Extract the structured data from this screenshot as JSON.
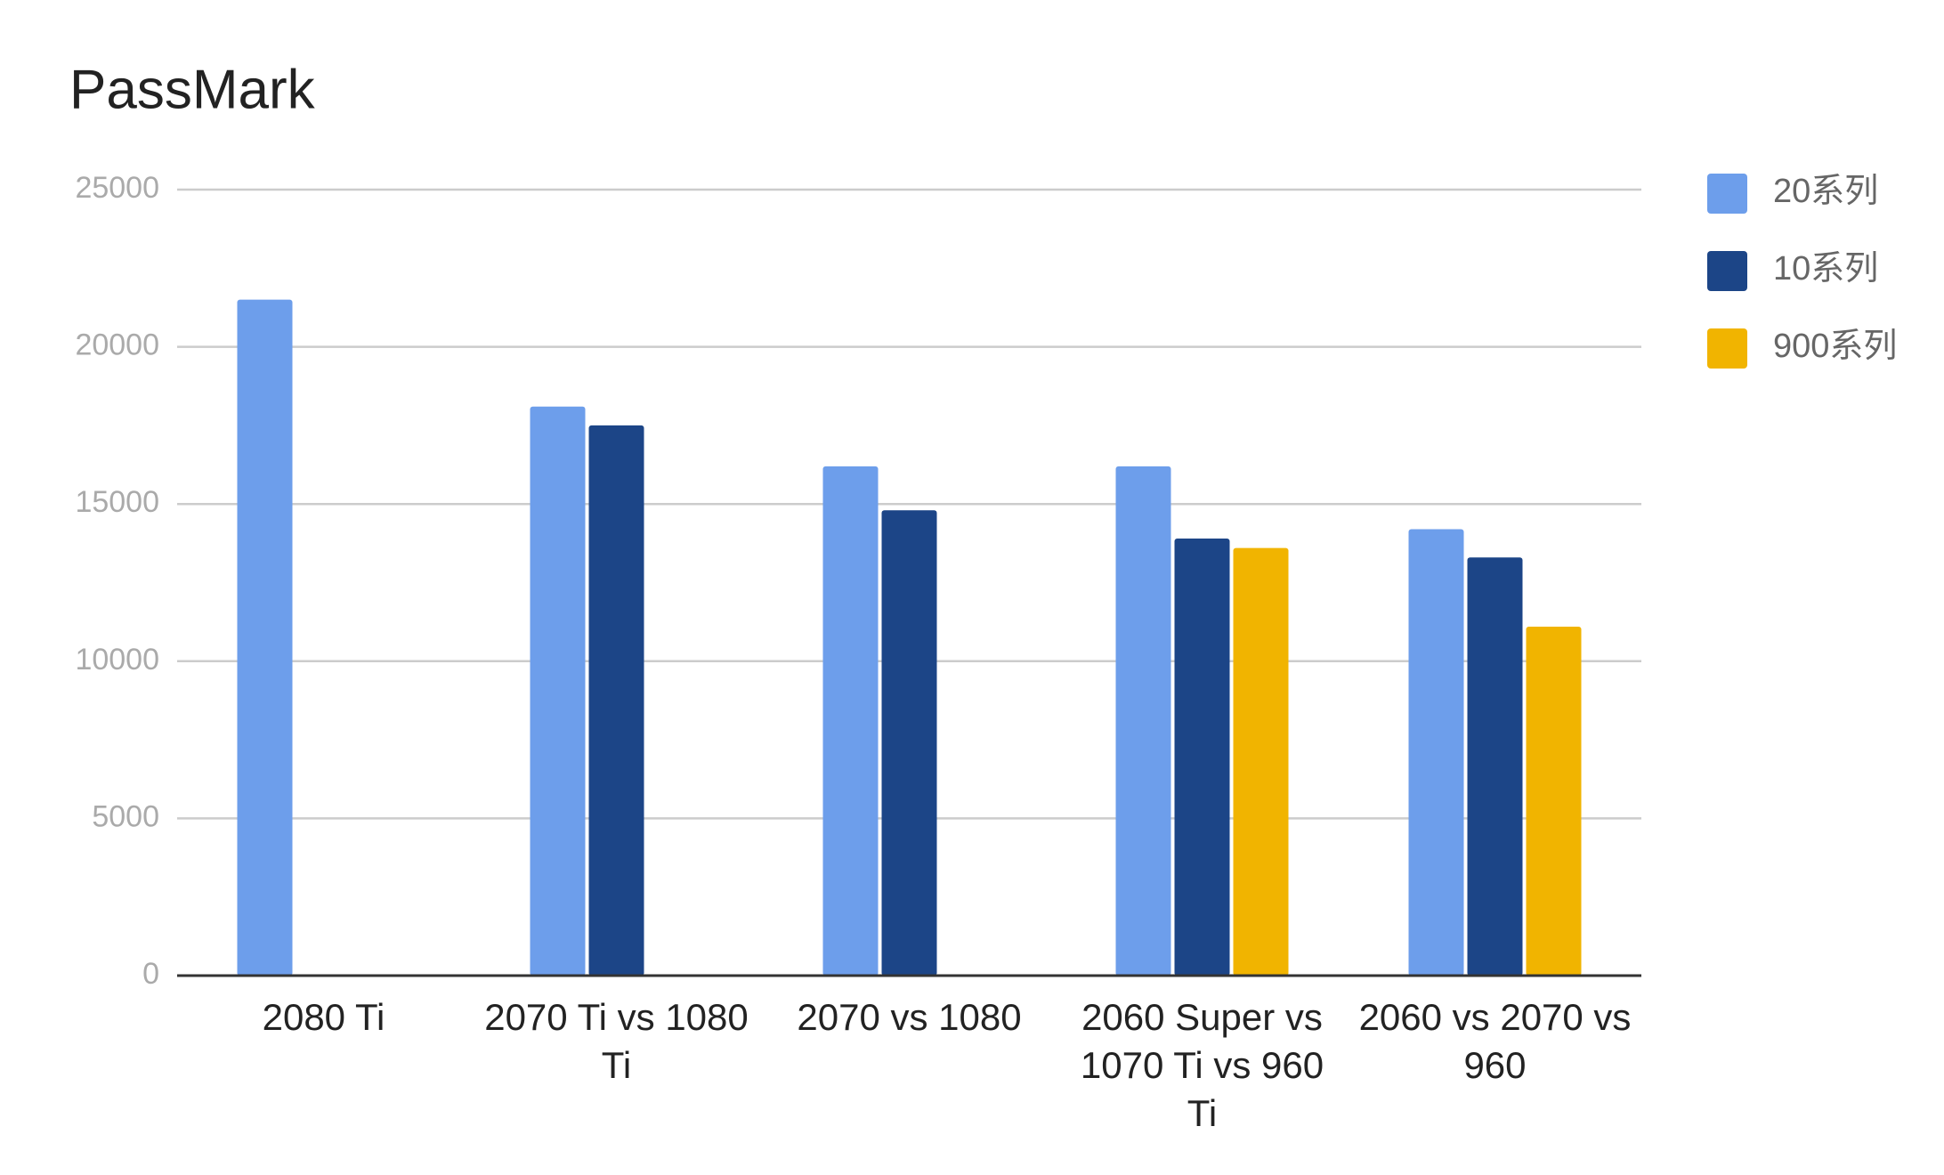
{
  "chart_data": {
    "type": "bar",
    "title": "PassMark",
    "categories": [
      "2080 Ti",
      "2070 Ti vs 1080 Ti",
      "2070 vs 1080",
      "2060 Super vs 1070 Ti vs 960 Ti",
      "2060 vs 2070 vs 960"
    ],
    "series": [
      {
        "name": "20系列",
        "color": "#6d9eeb",
        "values": [
          21500,
          18100,
          16200,
          16200,
          14200
        ]
      },
      {
        "name": "10系列",
        "color": "#1c4587",
        "values": [
          null,
          17500,
          14800,
          13900,
          13300
        ]
      },
      {
        "name": "900系列",
        "color": "#f1b400",
        "values": [
          null,
          null,
          null,
          13600,
          11100
        ]
      }
    ],
    "ylim": [
      0,
      25000
    ],
    "yticks": [
      0,
      5000,
      10000,
      15000,
      20000,
      25000
    ],
    "grid": true,
    "legend": "right"
  }
}
